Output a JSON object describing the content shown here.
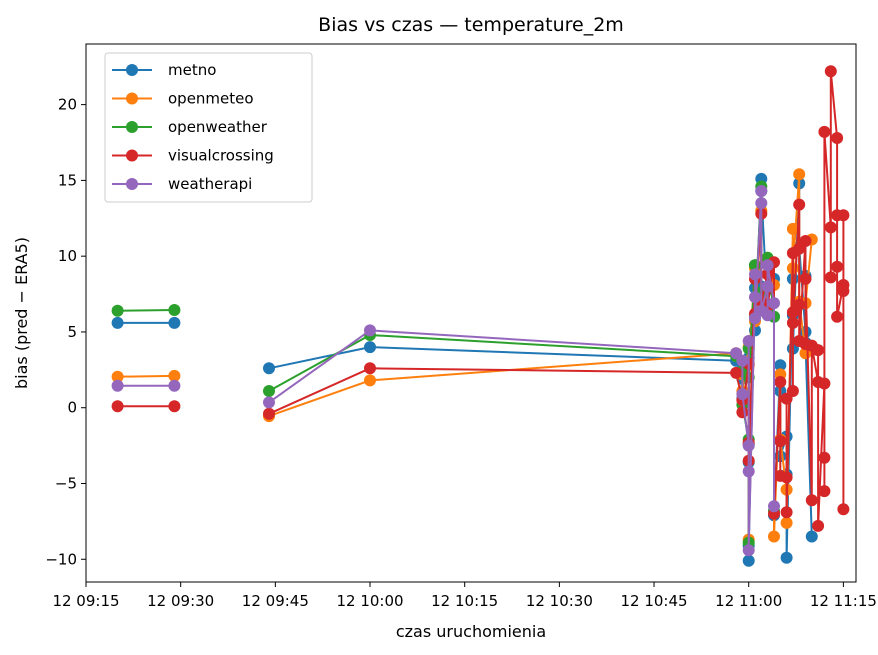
{
  "chart_data": {
    "type": "line",
    "title": "Bias vs czas — temperature_2m",
    "xlabel": "czas uruchomienia",
    "ylabel": "bias (pred − ERA5)",
    "x_unit": "time of day (12th)",
    "xlim": [
      "09:15",
      "11:17"
    ],
    "ylim": [
      -11.5,
      24.0
    ],
    "x_ticks": [
      "09:15",
      "09:30",
      "09:45",
      "10:00",
      "10:15",
      "10:30",
      "10:45",
      "11:00",
      "11:15"
    ],
    "x_tick_labels": [
      "12 09:15",
      "12 09:30",
      "12 09:45",
      "12 10:00",
      "12 10:15",
      "12 10:30",
      "12 10:45",
      "12 11:00",
      "12 11:15"
    ],
    "y_ticks": [
      -10,
      -5,
      0,
      5,
      10,
      15,
      20
    ],
    "y_tick_labels": [
      "−10",
      "−5",
      "0",
      "5",
      "10",
      "15",
      "20"
    ],
    "legend_position": "top-left",
    "grid": false,
    "series": [
      {
        "name": "metno",
        "color": "#1f77b4",
        "points": [
          [
            "09:20",
            5.6
          ],
          [
            "09:29",
            5.6
          ],
          null,
          [
            "09:44",
            2.6
          ],
          [
            "10:00",
            4.0
          ],
          [
            "10:58",
            3.1
          ],
          [
            "10:59",
            1.9
          ],
          [
            "10:59",
            0.6
          ],
          [
            "11:00",
            -2.4
          ],
          [
            "11:00",
            3.3
          ],
          [
            "11:00",
            -3.6
          ],
          [
            "11:00",
            -10.1
          ],
          [
            "11:00",
            -9.1
          ],
          [
            "11:01",
            7.9
          ],
          [
            "11:01",
            9.4
          ],
          [
            "11:01",
            5.1
          ],
          [
            "11:02",
            15.1
          ],
          [
            "11:02",
            8.0
          ],
          [
            "11:02",
            14.3
          ],
          [
            "11:03",
            6.4
          ],
          [
            "11:03",
            7.8
          ],
          [
            "11:03",
            9.8
          ],
          [
            "11:04",
            8.5
          ],
          [
            "11:04",
            6.0
          ],
          [
            "11:04",
            -7.1
          ],
          [
            "11:05",
            2.8
          ],
          [
            "11:05",
            1.1
          ],
          [
            "11:05",
            -3.2
          ],
          [
            "11:06",
            -1.9
          ],
          [
            "11:06",
            -4.4
          ],
          [
            "11:06",
            -9.9
          ],
          [
            "11:07",
            8.5
          ],
          [
            "11:07",
            6.1
          ],
          [
            "11:07",
            3.9
          ],
          [
            "11:08",
            14.8
          ],
          [
            "11:08",
            10.6
          ],
          [
            "11:09",
            5.0
          ],
          [
            "11:09",
            8.7
          ],
          [
            "11:09",
            4.3
          ],
          [
            "11:10",
            -8.5
          ]
        ]
      },
      {
        "name": "openmeteo",
        "color": "#ff7f0e",
        "points": [
          [
            "09:20",
            2.05
          ],
          [
            "09:29",
            2.1
          ],
          null,
          [
            "09:44",
            -0.55
          ],
          [
            "10:00",
            1.8
          ],
          [
            "10:58",
            3.6
          ],
          [
            "10:59",
            2.2
          ],
          [
            "10:59",
            1.1
          ],
          [
            "11:00",
            4.0
          ],
          [
            "11:00",
            -2.4
          ],
          [
            "11:00",
            -8.7
          ],
          [
            "11:00",
            2.8
          ],
          [
            "11:01",
            9.2
          ],
          [
            "11:01",
            5.7
          ],
          [
            "11:02",
            13.0
          ],
          [
            "11:02",
            7.1
          ],
          [
            "11:03",
            6.3
          ],
          [
            "11:03",
            9.7
          ],
          [
            "11:04",
            8.1
          ],
          [
            "11:04",
            -8.5
          ],
          [
            "11:05",
            2.2
          ],
          [
            "11:05",
            -2.1
          ],
          [
            "11:06",
            -5.4
          ],
          [
            "11:06",
            -7.6
          ],
          [
            "11:07",
            11.8
          ],
          [
            "11:07",
            9.2
          ],
          [
            "11:08",
            15.4
          ],
          [
            "11:08",
            7.0
          ],
          [
            "11:09",
            3.6
          ],
          [
            "11:09",
            6.9
          ],
          [
            "11:10",
            11.1
          ]
        ]
      },
      {
        "name": "openweather",
        "color": "#2ca02c",
        "points": [
          [
            "09:20",
            6.4
          ],
          [
            "09:29",
            6.45
          ],
          null,
          [
            "09:44",
            1.1
          ],
          [
            "10:00",
            4.8
          ],
          [
            "10:58",
            3.4
          ],
          [
            "10:59",
            2.4
          ],
          [
            "10:59",
            0.2
          ],
          [
            "11:00",
            -2.1
          ],
          [
            "11:00",
            3.9
          ],
          [
            "11:00",
            -8.9
          ],
          [
            "11:00",
            2.0
          ],
          [
            "11:01",
            9.4
          ],
          [
            "11:01",
            6.1
          ],
          [
            "11:02",
            14.6
          ],
          [
            "11:02",
            7.6
          ],
          [
            "11:03",
            6.6
          ],
          [
            "11:03",
            9.9
          ],
          [
            "11:04",
            6.0
          ],
          [
            "11:04",
            -6.8
          ]
        ]
      },
      {
        "name": "visualcrossing",
        "color": "#d62728",
        "points": [
          [
            "09:20",
            0.1
          ],
          [
            "09:29",
            0.1
          ],
          null,
          [
            "09:44",
            -0.4
          ],
          [
            "10:00",
            2.6
          ],
          [
            "10:58",
            2.3
          ],
          [
            "10:59",
            0.5
          ],
          [
            "10:59",
            -0.3
          ],
          [
            "11:00",
            2.9
          ],
          [
            "11:00",
            -2.3
          ],
          [
            "11:00",
            -3.5
          ],
          [
            "11:01",
            8.5
          ],
          [
            "11:01",
            6.2
          ],
          [
            "11:02",
            12.8
          ],
          [
            "11:02",
            7.0
          ],
          [
            "11:03",
            8.8
          ],
          [
            "11:03",
            6.7
          ],
          [
            "11:04",
            9.6
          ],
          [
            "11:04",
            -7.0
          ],
          [
            "11:05",
            1.7
          ],
          [
            "11:05",
            -2.2
          ],
          [
            "11:05",
            -4.5
          ],
          [
            "11:06",
            -4.6
          ],
          [
            "11:06",
            0.6
          ],
          [
            "11:06",
            -6.9
          ],
          [
            "11:07",
            10.2
          ],
          [
            "11:07",
            6.3
          ],
          [
            "11:07",
            1.1
          ],
          [
            "11:07",
            5.6
          ],
          [
            "11:08",
            13.4
          ],
          [
            "11:08",
            10.5
          ],
          [
            "11:08",
            6.8
          ],
          [
            "11:08",
            4.4
          ],
          [
            "11:09",
            11.0
          ],
          [
            "11:09",
            4.2
          ],
          [
            "11:09",
            8.5
          ],
          [
            "11:10",
            -6.1
          ],
          [
            "11:10",
            4.1
          ],
          [
            "11:11",
            1.7
          ],
          [
            "11:11",
            3.8
          ],
          [
            "11:11",
            -7.8
          ],
          [
            "11:12",
            1.6
          ],
          [
            "11:12",
            -3.3
          ],
          [
            "11:12",
            -5.5
          ],
          [
            "11:12",
            18.2
          ],
          [
            "11:13",
            11.9
          ],
          [
            "11:13",
            8.6
          ],
          [
            "11:13",
            22.2
          ],
          [
            "11:14",
            17.8
          ],
          [
            "11:14",
            12.7
          ],
          [
            "11:14",
            9.3
          ],
          [
            "11:14",
            6.0
          ],
          [
            "11:15",
            8.1
          ],
          [
            "11:15",
            12.7
          ],
          [
            "11:15",
            7.7
          ],
          [
            "11:15",
            -6.7
          ]
        ]
      },
      {
        "name": "weatherapi",
        "color": "#9467bd",
        "points": [
          [
            "09:20",
            1.45
          ],
          [
            "09:29",
            1.45
          ],
          null,
          [
            "09:44",
            0.35
          ],
          [
            "10:00",
            5.1
          ],
          [
            "10:58",
            3.6
          ],
          [
            "10:59",
            3.1
          ],
          [
            "10:59",
            0.9
          ],
          [
            "11:00",
            -2.5
          ],
          [
            "11:00",
            4.4
          ],
          [
            "11:00",
            -4.2
          ],
          [
            "11:00",
            -9.4
          ],
          [
            "11:01",
            7.3
          ],
          [
            "11:01",
            8.8
          ],
          [
            "11:01",
            5.9
          ],
          [
            "11:02",
            14.3
          ],
          [
            "11:02",
            13.5
          ],
          [
            "11:02",
            6.4
          ],
          [
            "11:03",
            8.0
          ],
          [
            "11:03",
            6.1
          ],
          [
            "11:03",
            9.4
          ],
          [
            "11:04",
            6.9
          ],
          [
            "11:04",
            -6.5
          ]
        ]
      }
    ]
  }
}
